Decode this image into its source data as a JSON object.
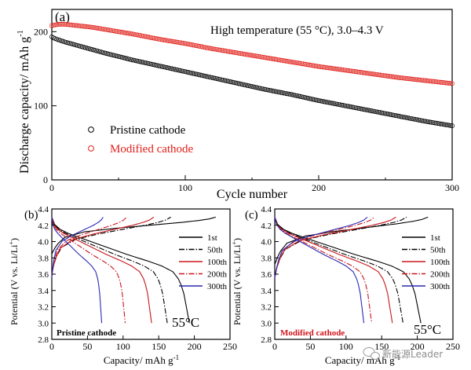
{
  "chart_data": [
    {
      "panel": "(a)",
      "type": "scatter",
      "annotation": "High temperature (55 °C), 3.0–4.3 V",
      "xlabel": "Cycle number",
      "ylabel": "Discharge capacity/ mAh g",
      "ylabel_sup": "-1",
      "xlim": [
        0,
        300
      ],
      "ylim": [
        0,
        230
      ],
      "xticks": [
        "0",
        "100",
        "200",
        "300"
      ],
      "yticks": [
        "0",
        "100",
        "200"
      ],
      "legend_position": "lower-left",
      "series": [
        {
          "name": "Pristine cathode",
          "color": "#000000",
          "marker": "open-circle",
          "x": [
            0,
            2,
            5,
            10,
            20,
            30,
            40,
            60,
            80,
            100,
            120,
            140,
            160,
            180,
            200,
            220,
            240,
            260,
            280,
            300
          ],
          "y": [
            193,
            191,
            189,
            186,
            181,
            176,
            171,
            162,
            154,
            146,
            138,
            130,
            122,
            115,
            107,
            100,
            93,
            86,
            79,
            73
          ]
        },
        {
          "name": "Modified cathode",
          "color": "#e0201a",
          "marker": "open-circle",
          "x": [
            0,
            2,
            5,
            10,
            20,
            30,
            40,
            60,
            80,
            100,
            120,
            140,
            160,
            180,
            200,
            220,
            240,
            260,
            280,
            300
          ],
          "y": [
            208,
            209,
            210,
            210,
            208,
            206,
            203,
            197,
            190,
            184,
            177,
            171,
            165,
            159,
            153,
            148,
            143,
            138,
            134,
            130
          ]
        }
      ]
    },
    {
      "panel": "(b)",
      "type": "line",
      "xlabel": "Capacity/ mAh g",
      "xlabel_sup": "-1",
      "ylabel": "Potential (V vs. Li/Li",
      "ylabel_sup": "+",
      "ylabel_end": ")",
      "xlim": [
        0,
        250
      ],
      "ylim": [
        2.8,
        4.4
      ],
      "xticks": [
        "0",
        "50",
        "100",
        "150",
        "200",
        "250"
      ],
      "yticks": [
        "2.8",
        "3.0",
        "3.2",
        "3.4",
        "3.6",
        "3.8",
        "4.0",
        "4.2",
        "4.4"
      ],
      "inset_label": "Pristine cathode",
      "temperature_label": "55°C",
      "series": [
        {
          "name": "1st",
          "color": "#000000",
          "dash": "solid",
          "charge_cap": 230,
          "discharge_cap": 193,
          "charge_start": 3.85
        },
        {
          "name": "50th",
          "color": "#000000",
          "dash": "dashdot",
          "charge_cap": 167,
          "discharge_cap": 162,
          "charge_start": 3.62
        },
        {
          "name": "100th",
          "color": "#c8161d",
          "dash": "solid",
          "charge_cap": 143,
          "discharge_cap": 140,
          "charge_start": 3.6
        },
        {
          "name": "200th",
          "color": "#c8161d",
          "dash": "dashdot",
          "charge_cap": 105,
          "discharge_cap": 103,
          "charge_start": 3.58
        },
        {
          "name": "300th",
          "color": "#2a2ab4",
          "dash": "solid",
          "charge_cap": 72,
          "discharge_cap": 70,
          "charge_start": 3.56
        }
      ]
    },
    {
      "panel": "(c)",
      "type": "line",
      "xlabel": "Capacity/ mAh g",
      "xlabel_sup": "-1",
      "ylabel": "Potential (V vs. Li/Li",
      "ylabel_sup": "+",
      "ylabel_end": ")",
      "xlim": [
        0,
        250
      ],
      "ylim": [
        2.8,
        4.4
      ],
      "xticks": [
        "0",
        "50",
        "100",
        "150",
        "200",
        "250"
      ],
      "yticks": [
        "2.8",
        "3.0",
        "3.2",
        "3.4",
        "3.6",
        "3.8",
        "4.0",
        "4.2",
        "4.4"
      ],
      "inset_label": "Modified cathode",
      "temperature_label": "55°C",
      "series": [
        {
          "name": "1st",
          "color": "#000000",
          "dash": "solid",
          "charge_cap": 215,
          "discharge_cap": 205,
          "charge_start": 3.72
        },
        {
          "name": "50th",
          "color": "#000000",
          "dash": "dashdot",
          "charge_cap": 185,
          "discharge_cap": 180,
          "charge_start": 3.58
        },
        {
          "name": "100th",
          "color": "#c8161d",
          "dash": "solid",
          "charge_cap": 170,
          "discharge_cap": 165,
          "charge_start": 3.57
        },
        {
          "name": "200th",
          "color": "#c8161d",
          "dash": "dashdot",
          "charge_cap": 140,
          "discharge_cap": 136,
          "charge_start": 3.56
        },
        {
          "name": "300th",
          "color": "#2a2ab4",
          "dash": "solid",
          "charge_cap": 130,
          "discharge_cap": 125,
          "charge_start": 3.55
        }
      ]
    }
  ],
  "watermark": "新能源Leader",
  "watermark_icon": "wechat-icon"
}
